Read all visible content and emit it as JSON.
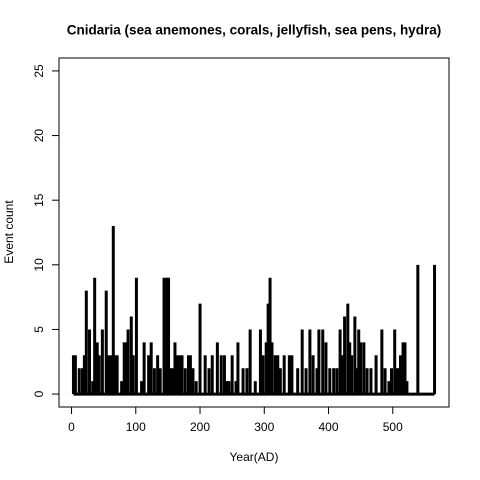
{
  "chart_data": {
    "type": "bar",
    "title": "Cnidaria (sea anemones, corals, jellyfish, sea pens, hydra)",
    "x_label": "Year(AD)",
    "y_label": "Event count",
    "x": [
      3,
      6,
      12,
      17,
      20,
      23,
      28,
      33,
      36,
      40,
      43,
      48,
      54,
      57,
      61,
      65,
      68,
      71,
      78,
      82,
      85,
      88,
      93,
      96,
      101,
      109,
      113,
      120,
      124,
      129,
      134,
      138,
      144,
      148,
      151,
      154,
      157,
      161,
      165,
      169,
      172,
      177,
      182,
      185,
      189,
      194,
      200,
      208,
      214,
      219,
      227,
      233,
      238,
      242,
      245,
      250,
      256,
      259,
      267,
      273,
      278,
      286,
      294,
      298,
      303,
      306,
      309,
      312,
      317,
      321,
      325,
      331,
      339,
      343,
      352,
      359,
      365,
      371,
      376,
      382,
      385,
      391,
      396,
      402,
      408,
      413,
      418,
      421,
      425,
      430,
      433,
      436,
      441,
      444,
      447,
      450,
      455,
      460,
      466,
      474,
      483,
      488,
      494,
      498,
      503,
      506,
      509,
      512,
      516,
      519,
      522,
      539,
      565
    ],
    "values": [
      3,
      3,
      2,
      2,
      3,
      8,
      5,
      1,
      9,
      4,
      3,
      5,
      8,
      3,
      3,
      13,
      3,
      3,
      1,
      4,
      4,
      5,
      6,
      3,
      9,
      1,
      4,
      3,
      4,
      2,
      3,
      2,
      9,
      9,
      9,
      2,
      2,
      4,
      3,
      3,
      3,
      2,
      3,
      3,
      2,
      1,
      7,
      3,
      2,
      3,
      4,
      3,
      3,
      1,
      1,
      3,
      1,
      4,
      2,
      2,
      5,
      1,
      5,
      3,
      4,
      7,
      9,
      4,
      3,
      3,
      2,
      3,
      3,
      3,
      2,
      5,
      2,
      5,
      3,
      2,
      5,
      5,
      4,
      2,
      2,
      2,
      5,
      3,
      6,
      7,
      4,
      3,
      6,
      2,
      5,
      4,
      4,
      2,
      2,
      3,
      5,
      2,
      1,
      2,
      5,
      2,
      2,
      3,
      4,
      4,
      1,
      10,
      10
    ],
    "color": "#000000",
    "xlim": [
      -19.5,
      587.5
    ],
    "xticks": [
      0,
      100,
      200,
      300,
      400,
      500
    ],
    "ylim": [
      -1,
      26
    ],
    "yticks": [
      0,
      5,
      10,
      15,
      20,
      25
    ]
  }
}
